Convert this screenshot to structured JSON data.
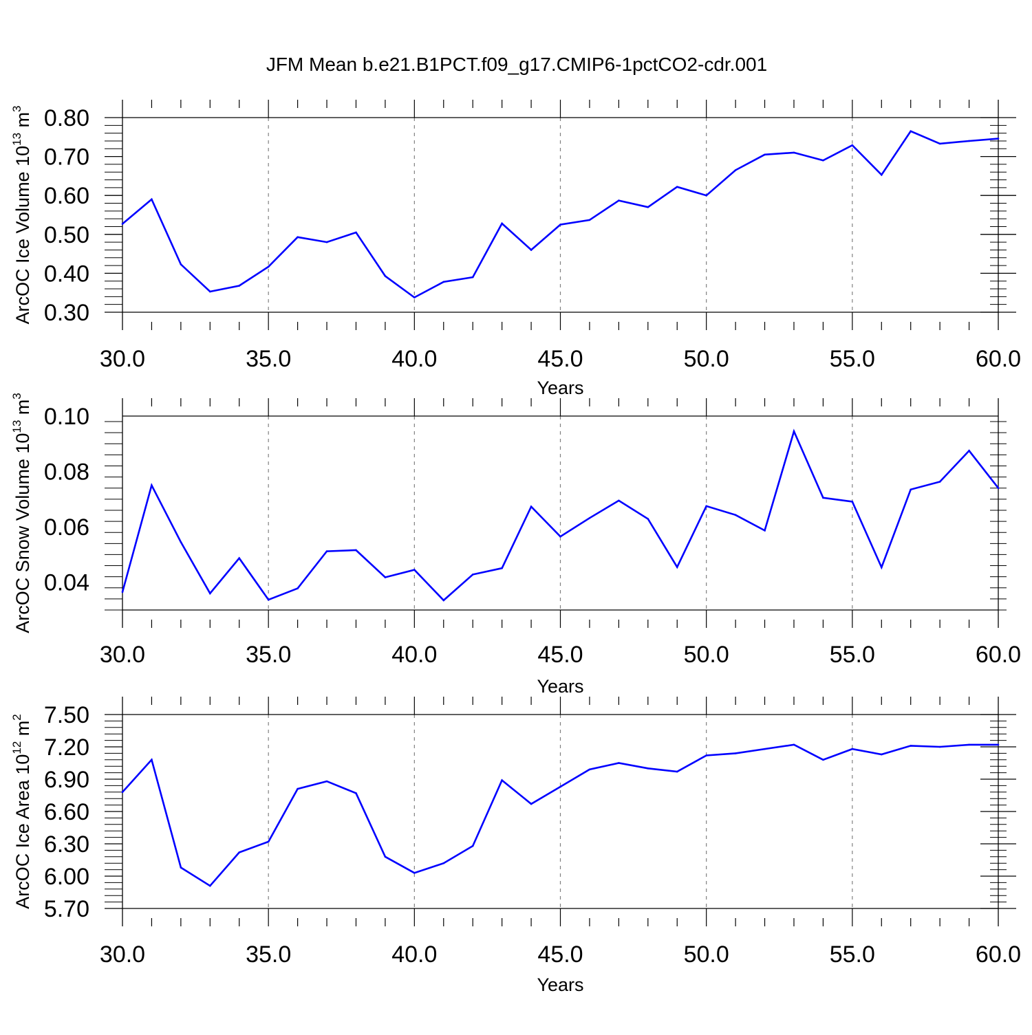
{
  "title": "JFM Mean b.e21.B1PCT.f09_g17.CMIP6-1pctCO2-cdr.001",
  "colors": {
    "line": "#0000ff",
    "axis": "#000000",
    "grid": "#808080",
    "background": "#ffffff"
  },
  "chart_data": [
    {
      "type": "line",
      "xlabel": "Years",
      "ylabel": {
        "prefix": "ArcOC Ice Volume 10",
        "exponent": "13",
        "mid": " m",
        "unit_exponent": "3"
      },
      "xlim": [
        30,
        60
      ],
      "ylim": [
        0.3,
        0.8
      ],
      "x_ticks": [
        "30.0",
        "35.0",
        "40.0",
        "45.0",
        "50.0",
        "55.0",
        "60.0"
      ],
      "y_ticks": [
        "0.30",
        "0.40",
        "0.50",
        "0.60",
        "0.70",
        "0.80"
      ],
      "grid": "vertical dashed at major x ticks",
      "x": [
        30,
        31,
        32,
        33,
        34,
        35,
        36,
        37,
        38,
        39,
        40,
        41,
        42,
        43,
        44,
        45,
        46,
        47,
        48,
        49,
        50,
        51,
        52,
        53,
        54,
        55,
        56,
        57,
        58,
        59,
        60
      ],
      "values": [
        0.527,
        0.59,
        0.423,
        0.353,
        0.368,
        0.417,
        0.493,
        0.48,
        0.505,
        0.393,
        0.338,
        0.378,
        0.39,
        0.528,
        0.46,
        0.525,
        0.537,
        0.587,
        0.57,
        0.622,
        0.6,
        0.665,
        0.705,
        0.71,
        0.69,
        0.729,
        0.653,
        0.765,
        0.733,
        0.74,
        0.746
      ]
    },
    {
      "type": "line",
      "xlabel": "Years",
      "ylabel": {
        "prefix": "ArcOC Snow Volume 10",
        "exponent": "13",
        "mid": " m",
        "unit_exponent": "3"
      },
      "xlim": [
        30,
        60
      ],
      "ylim": [
        0.03,
        0.1
      ],
      "x_ticks": [
        "30.0",
        "35.0",
        "40.0",
        "45.0",
        "50.0",
        "55.0",
        "60.0"
      ],
      "y_ticks": [
        "0.04",
        "0.06",
        "0.08",
        "0.10"
      ],
      "grid": "vertical dashed at major x ticks",
      "x": [
        30,
        31,
        32,
        33,
        34,
        35,
        36,
        37,
        38,
        39,
        40,
        41,
        42,
        43,
        44,
        45,
        46,
        47,
        48,
        49,
        50,
        51,
        52,
        53,
        54,
        55,
        56,
        57,
        58,
        59,
        60
      ],
      "values": [
        0.0365,
        0.075,
        0.0545,
        0.036,
        0.0487,
        0.0337,
        0.0378,
        0.0512,
        0.0516,
        0.0418,
        0.0445,
        0.0335,
        0.0428,
        0.0451,
        0.0673,
        0.0565,
        0.0632,
        0.0695,
        0.0629,
        0.0455,
        0.0675,
        0.0643,
        0.0587,
        0.0945,
        0.0705,
        0.0691,
        0.0454,
        0.0735,
        0.0763,
        0.0875,
        0.074
      ]
    },
    {
      "type": "line",
      "xlabel": "Years",
      "ylabel": {
        "prefix": "ArcOC Ice Area 10",
        "exponent": "12",
        "mid": " m",
        "unit_exponent": "2"
      },
      "xlim": [
        30,
        60
      ],
      "ylim": [
        5.7,
        7.5
      ],
      "x_ticks": [
        "30.0",
        "35.0",
        "40.0",
        "45.0",
        "50.0",
        "55.0",
        "60.0"
      ],
      "y_ticks": [
        "5.70",
        "6.00",
        "6.30",
        "6.60",
        "6.90",
        "7.20",
        "7.50"
      ],
      "grid": "vertical dashed at major x ticks",
      "x": [
        30,
        31,
        32,
        33,
        34,
        35,
        36,
        37,
        38,
        39,
        40,
        41,
        42,
        43,
        44,
        45,
        46,
        47,
        48,
        49,
        50,
        51,
        52,
        53,
        54,
        55,
        56,
        57,
        58,
        59,
        60
      ],
      "values": [
        6.78,
        7.08,
        6.08,
        5.91,
        6.22,
        6.32,
        6.81,
        6.88,
        6.77,
        6.18,
        6.03,
        6.12,
        6.28,
        6.89,
        6.67,
        6.83,
        6.99,
        7.05,
        7.0,
        6.97,
        7.12,
        7.14,
        7.18,
        7.22,
        7.08,
        7.18,
        7.13,
        7.21,
        7.2,
        7.22,
        7.22
      ]
    }
  ]
}
